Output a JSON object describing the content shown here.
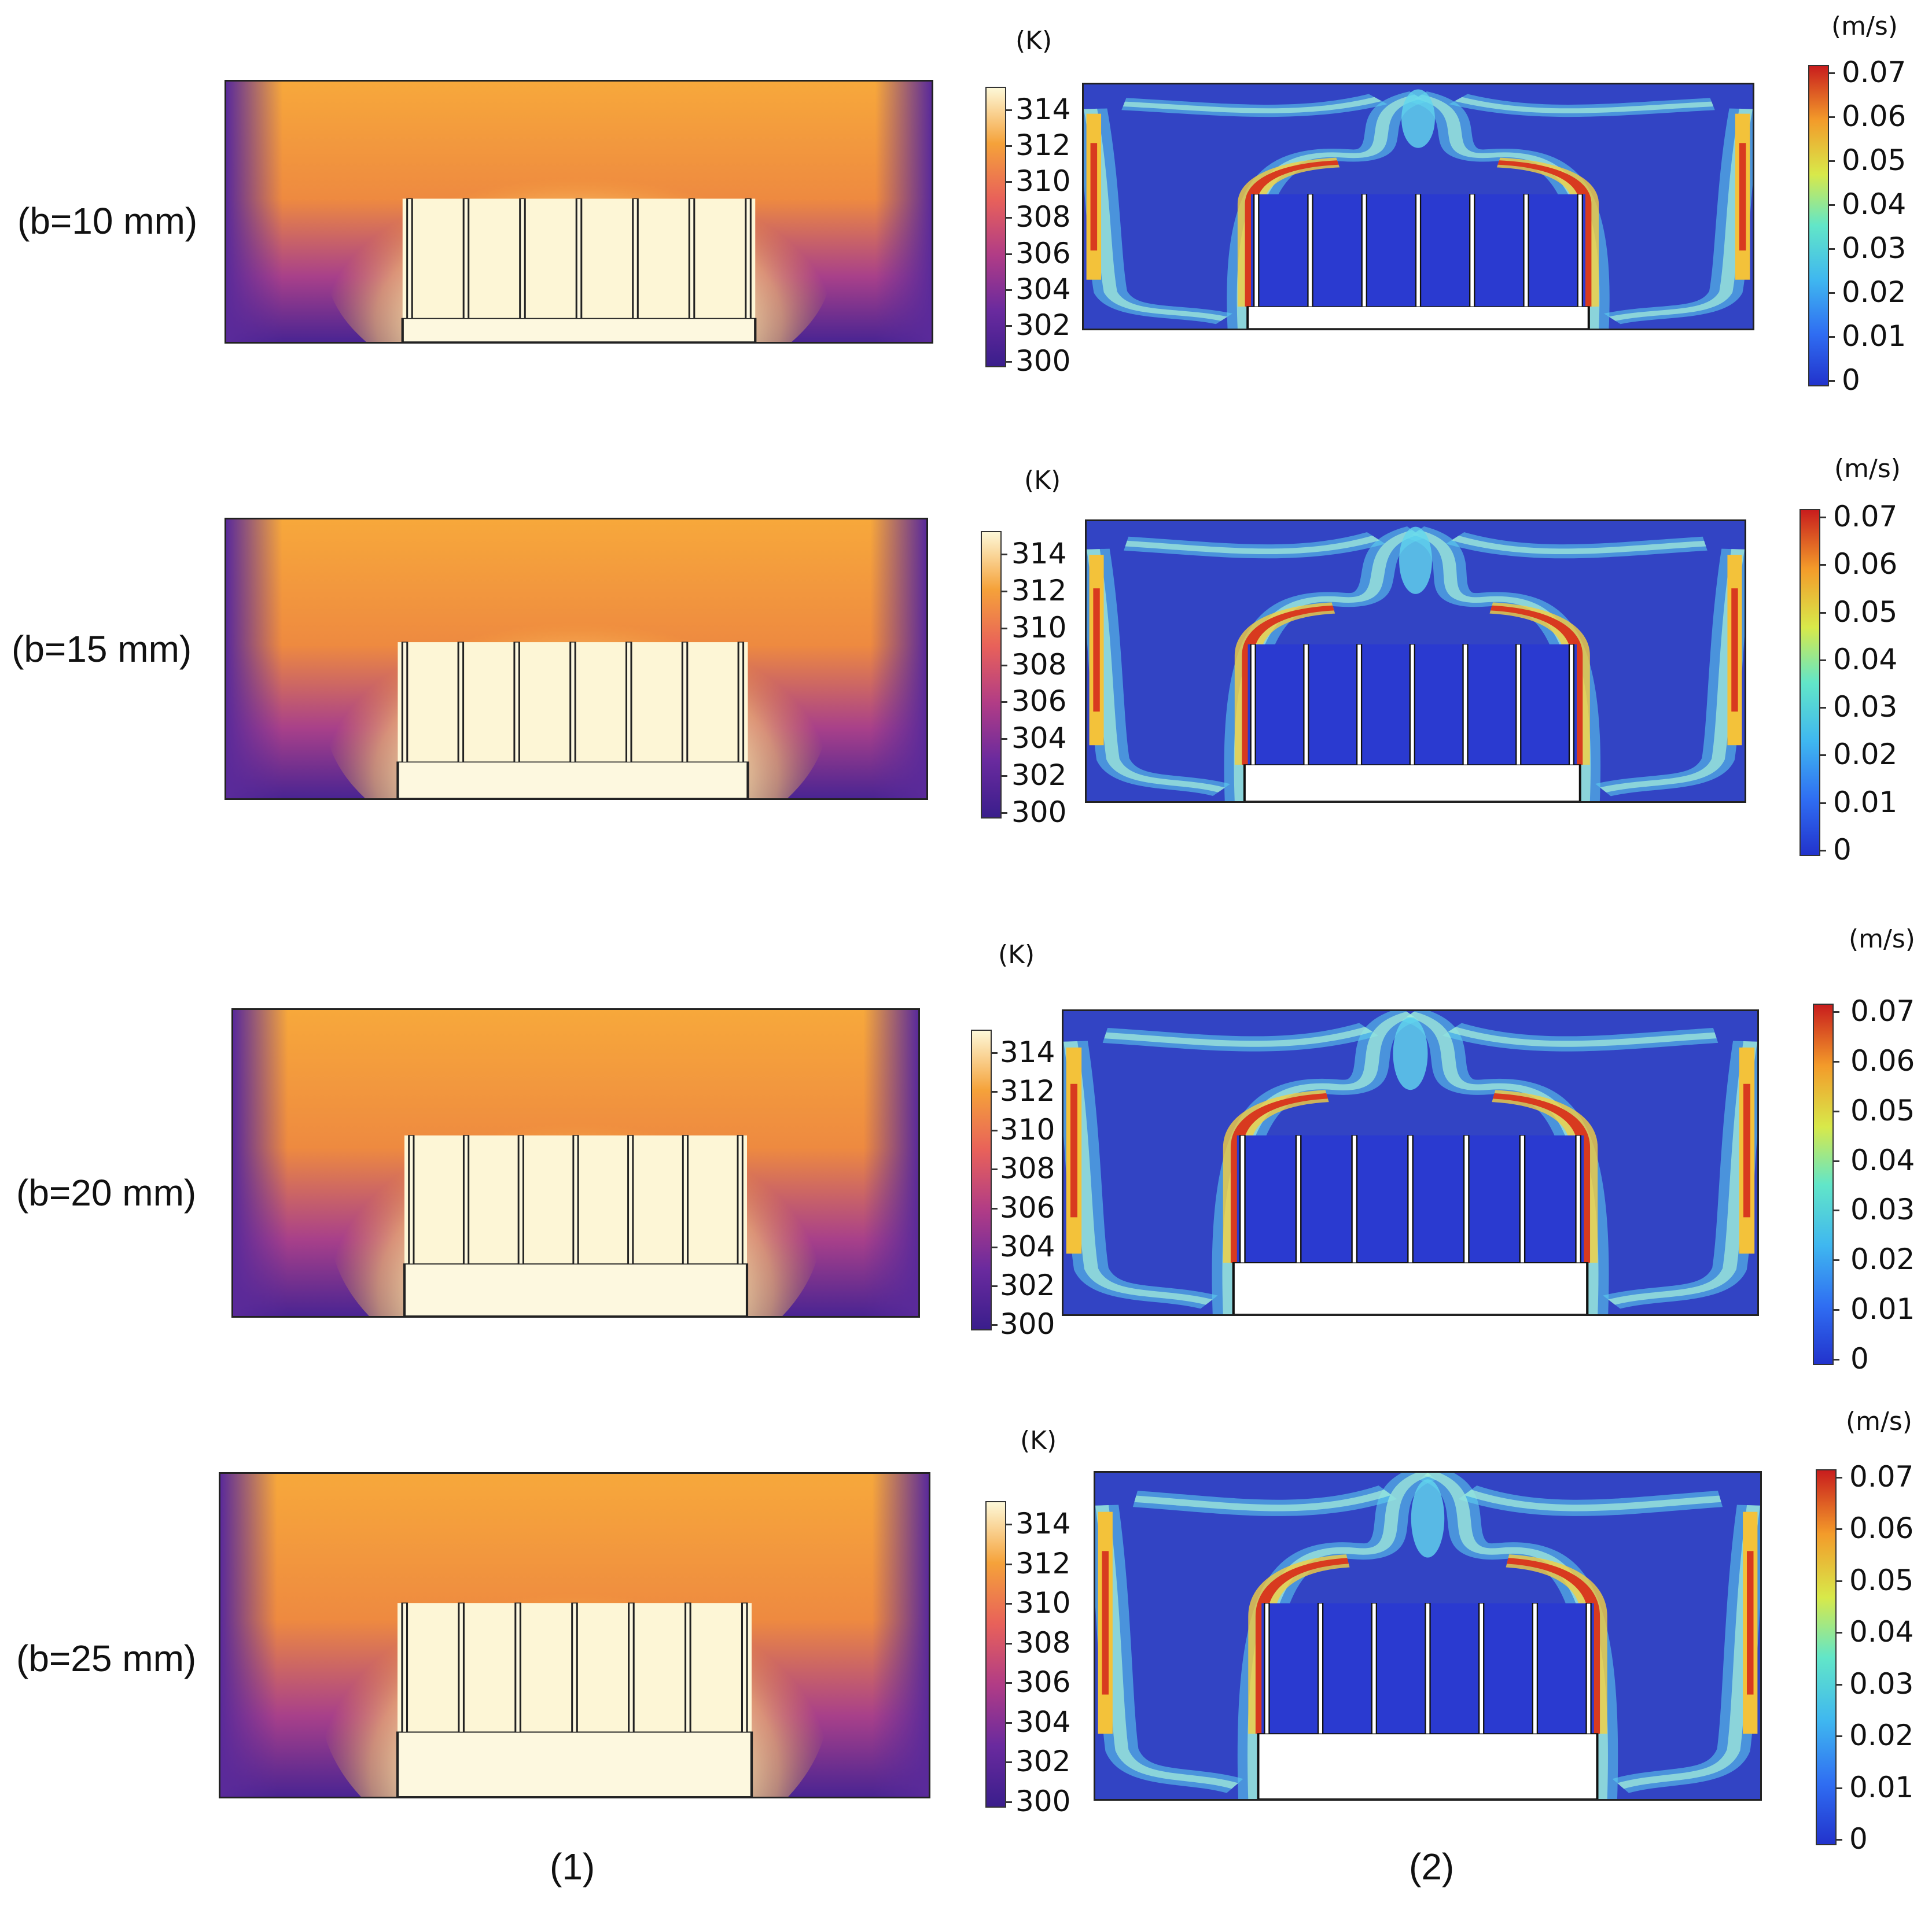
{
  "rows": [
    {
      "label": "(b=10 mm)"
    },
    {
      "label": "(b=15 mm)"
    },
    {
      "label": "(b=20 mm)"
    },
    {
      "label": "(b=25 mm)"
    }
  ],
  "columns": {
    "left": "(1)",
    "right": "(2)"
  },
  "temperature_colorbar": {
    "unit": "(K)",
    "ticks": [
      "314",
      "312",
      "310",
      "308",
      "306",
      "304",
      "302",
      "300"
    ]
  },
  "velocity_colorbar": {
    "unit": "(m/s)",
    "ticks": [
      "0.07",
      "0.06",
      "0.05",
      "0.04",
      "0.03",
      "0.02",
      "0.01",
      "0"
    ]
  },
  "colors": {
    "temp_hot": "#fdf8d8",
    "temp_mid": "#f5a23a",
    "temp_cold": "#3a1e8c",
    "vel_low": "#2233cc",
    "vel_high": "#c81d1d"
  }
}
